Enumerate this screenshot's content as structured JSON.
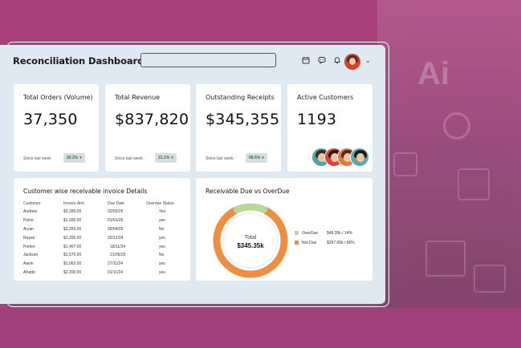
{
  "header": {
    "title": "Reconciliation Dashboard",
    "search_placeholder": ""
  },
  "stats": [
    {
      "label": "Total Orders (Volume)",
      "value": "37,350",
      "since": "Since last week",
      "badge": "20.2%"
    },
    {
      "label": "Total  Revenue",
      "value": "$837,820",
      "since": "Since last week",
      "badge": "21.1%"
    },
    {
      "label": "Outstanding Receipts",
      "value": "$345,355",
      "since": "Since last week",
      "badge": "08.5%"
    },
    {
      "label": "Active Customers",
      "value": "1193"
    }
  ],
  "invoices": {
    "title": "Customer wise receivable invoice Details",
    "columns": [
      "Customer",
      "Invoice Amt",
      "Due Date",
      "Overdue Status"
    ],
    "rows": [
      [
        "Andrew",
        "$3,289.00",
        "02/02/25",
        "Yes"
      ],
      [
        "Peine",
        "$1,500.00",
        "01/01/25",
        "yes"
      ],
      [
        "Aryan",
        "$2,250.00",
        "05/04/25",
        "No"
      ],
      [
        "Rayan",
        "$1,205.00",
        "25/12/24",
        "yes"
      ],
      [
        "Portex",
        "$1,407.00",
        "18/11/24",
        "yes"
      ],
      [
        "Jackson",
        "$1,570.00",
        "21/06/25",
        "No"
      ],
      [
        "Aavin",
        "$1,062.00",
        "27/11/24",
        "yes"
      ],
      [
        "Afrado",
        "$2,200.00",
        "01/11/24",
        "yes"
      ]
    ]
  },
  "receivable": {
    "title": "Receivable Due vs OverDue",
    "center_label": "Total",
    "center_value": "$345.35k",
    "legend": [
      {
        "name": "OverDue",
        "value": "$48.35k / 14%",
        "color": "#b9d79a",
        "fraction": 0.14
      },
      {
        "name": "Not Due",
        "value": "$297.00k / 86%",
        "color": "#ef8d41",
        "fraction": 0.86
      }
    ]
  },
  "colors": {
    "background": "#a0447a",
    "panel": "#dfe9f1",
    "card": "#ffffff",
    "badge_text": "#2c7a3f"
  }
}
